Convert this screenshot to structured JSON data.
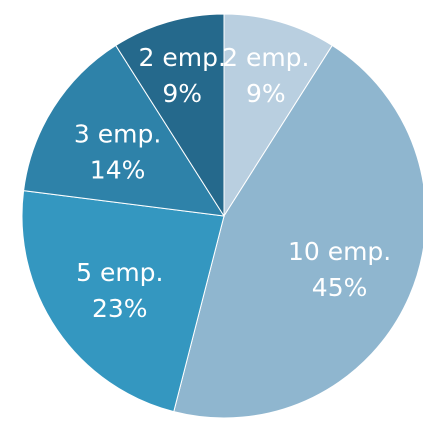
{
  "chart_data": {
    "type": "pie",
    "title": "",
    "legend": "none",
    "slices": [
      {
        "label": "2 emp.",
        "value": 9,
        "percent_label": "9%",
        "color": "#b9cfe0"
      },
      {
        "label": "10 emp.",
        "value": 45,
        "percent_label": "45%",
        "color": "#8fb6cf"
      },
      {
        "label": "5 emp.",
        "value": 23,
        "percent_label": "23%",
        "color": "#3497c0"
      },
      {
        "label": "3 emp.",
        "value": 14,
        "percent_label": "14%",
        "color": "#2e82a9"
      },
      {
        "label": "2 emp.",
        "value": 9,
        "percent_label": "9%",
        "color": "#25698c"
      }
    ]
  }
}
